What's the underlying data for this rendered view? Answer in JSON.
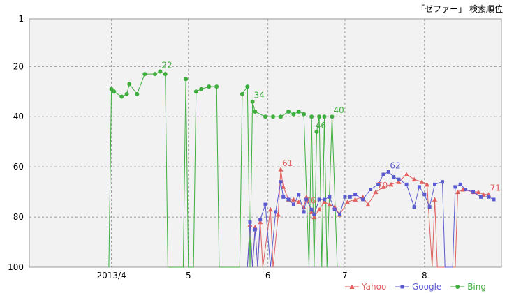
{
  "chart_data": {
    "type": "line",
    "title": "「ゼファー」 検索順位",
    "xlabel": "",
    "ylabel": "",
    "ylim": [
      1,
      100
    ],
    "y_inverted": true,
    "y_ticks": [
      1,
      20,
      40,
      60,
      80,
      100
    ],
    "x_domain": [
      "2013-02-28",
      "2013-08-31"
    ],
    "x_ticks": [
      {
        "date": "2013-04-01",
        "label": "2013/4"
      },
      {
        "date": "2013-05-01",
        "label": "5"
      },
      {
        "date": "2013-06-01",
        "label": "6"
      },
      {
        "date": "2013-07-01",
        "label": "7"
      },
      {
        "date": "2013-08-01",
        "label": "8"
      }
    ],
    "grid": true,
    "legend_position": "bottom-right",
    "series": [
      {
        "name": "Yahoo",
        "color": "#e06060",
        "marker": "triangle",
        "points": [
          [
            "2013-05-24",
            100
          ],
          [
            "2013-05-25",
            83
          ],
          [
            "2013-05-26",
            100
          ],
          [
            "2013-05-27",
            84
          ],
          [
            "2013-05-28",
            100
          ],
          [
            "2013-05-29",
            82
          ],
          [
            "2013-05-30",
            100
          ],
          [
            "2013-06-02",
            77
          ],
          [
            "2013-06-03",
            100
          ],
          [
            "2013-06-05",
            79
          ],
          [
            "2013-06-06",
            61
          ],
          [
            "2013-06-07",
            68
          ],
          [
            "2013-06-09",
            73
          ],
          [
            "2013-06-11",
            73
          ],
          [
            "2013-06-13",
            74
          ],
          [
            "2013-06-15",
            76
          ],
          [
            "2013-06-16",
            72
          ],
          [
            "2013-06-18",
            78
          ],
          [
            "2013-06-19",
            80
          ],
          [
            "2013-06-21",
            77
          ],
          [
            "2013-06-23",
            74
          ],
          [
            "2013-06-25",
            75
          ],
          [
            "2013-06-27",
            76
          ],
          [
            "2013-06-29",
            79
          ],
          [
            "2013-07-02",
            74
          ],
          [
            "2013-07-05",
            73
          ],
          [
            "2013-07-08",
            72
          ],
          [
            "2013-07-10",
            75
          ],
          [
            "2013-07-13",
            70
          ],
          [
            "2013-07-16",
            68
          ],
          [
            "2013-07-19",
            67
          ],
          [
            "2013-07-22",
            66
          ],
          [
            "2013-07-25",
            63
          ],
          [
            "2013-07-28",
            65
          ],
          [
            "2013-07-31",
            66
          ],
          [
            "2013-08-02",
            67
          ],
          [
            "2013-08-04",
            100
          ],
          [
            "2013-08-05",
            73
          ],
          [
            "2013-08-06",
            100
          ],
          [
            "2013-08-13",
            100
          ],
          [
            "2013-08-14",
            70
          ],
          [
            "2013-08-16",
            69
          ],
          [
            "2013-08-20",
            70
          ],
          [
            "2013-08-22",
            70
          ],
          [
            "2013-08-24",
            71
          ],
          [
            "2013-08-26",
            71
          ]
        ],
        "labels": [
          {
            "date": "2013-06-06",
            "value": 61,
            "text": "61"
          },
          {
            "date": "2013-06-15",
            "value": 76,
            "text": "76"
          },
          {
            "date": "2013-07-13",
            "value": 70,
            "text": "70"
          },
          {
            "date": "2013-08-26",
            "value": 71,
            "text": "71"
          }
        ]
      },
      {
        "name": "Google",
        "color": "#5b5bcf",
        "marker": "square",
        "points": [
          [
            "2013-05-24",
            100
          ],
          [
            "2013-05-25",
            82
          ],
          [
            "2013-05-26",
            100
          ],
          [
            "2013-05-27",
            85
          ],
          [
            "2013-05-28",
            100
          ],
          [
            "2013-05-29",
            81
          ],
          [
            "2013-05-31",
            75
          ],
          [
            "2013-06-02",
            100
          ],
          [
            "2013-06-04",
            78
          ],
          [
            "2013-06-06",
            66
          ],
          [
            "2013-06-07",
            72
          ],
          [
            "2013-06-09",
            73
          ],
          [
            "2013-06-11",
            75
          ],
          [
            "2013-06-13",
            71
          ],
          [
            "2013-06-15",
            78
          ],
          [
            "2013-06-16",
            73
          ],
          [
            "2013-06-18",
            77
          ],
          [
            "2013-06-19",
            79
          ],
          [
            "2013-06-21",
            73
          ],
          [
            "2013-06-23",
            73
          ],
          [
            "2013-06-25",
            72
          ],
          [
            "2013-06-27",
            77
          ],
          [
            "2013-06-29",
            79
          ],
          [
            "2013-07-01",
            72
          ],
          [
            "2013-07-03",
            72
          ],
          [
            "2013-07-05",
            71
          ],
          [
            "2013-07-08",
            73
          ],
          [
            "2013-07-11",
            69
          ],
          [
            "2013-07-14",
            67
          ],
          [
            "2013-07-16",
            63
          ],
          [
            "2013-07-18",
            62
          ],
          [
            "2013-07-20",
            64
          ],
          [
            "2013-07-22",
            65
          ],
          [
            "2013-07-25",
            67
          ],
          [
            "2013-07-28",
            76
          ],
          [
            "2013-07-30",
            68
          ],
          [
            "2013-08-01",
            71
          ],
          [
            "2013-08-03",
            76
          ],
          [
            "2013-08-05",
            67
          ],
          [
            "2013-08-08",
            66
          ],
          [
            "2013-08-09",
            100
          ],
          [
            "2013-08-12",
            100
          ],
          [
            "2013-08-13",
            68
          ],
          [
            "2013-08-15",
            67
          ],
          [
            "2013-08-17",
            69
          ],
          [
            "2013-08-20",
            70
          ],
          [
            "2013-08-23",
            72
          ],
          [
            "2013-08-26",
            72
          ],
          [
            "2013-08-28",
            73
          ]
        ],
        "labels": [
          {
            "date": "2013-07-18",
            "value": 62,
            "text": "62"
          }
        ]
      },
      {
        "name": "Bing",
        "color": "#3fae3f",
        "marker": "circle",
        "points": [
          [
            "2013-03-31",
            100
          ],
          [
            "2013-04-01",
            29
          ],
          [
            "2013-04-02",
            30
          ],
          [
            "2013-04-05",
            32
          ],
          [
            "2013-04-07",
            31
          ],
          [
            "2013-04-08",
            27
          ],
          [
            "2013-04-11",
            31
          ],
          [
            "2013-04-14",
            23
          ],
          [
            "2013-04-18",
            23
          ],
          [
            "2013-04-20",
            22
          ],
          [
            "2013-04-22",
            23
          ],
          [
            "2013-04-23",
            100
          ],
          [
            "2013-04-29",
            100
          ],
          [
            "2013-04-30",
            25
          ],
          [
            "2013-05-01",
            100
          ],
          [
            "2013-05-03",
            100
          ],
          [
            "2013-05-04",
            30
          ],
          [
            "2013-05-06",
            29
          ],
          [
            "2013-05-09",
            28
          ],
          [
            "2013-05-12",
            28
          ],
          [
            "2013-05-13",
            100
          ],
          [
            "2013-05-21",
            100
          ],
          [
            "2013-05-22",
            31
          ],
          [
            "2013-05-24",
            28
          ],
          [
            "2013-05-25",
            100
          ],
          [
            "2013-05-26",
            34
          ],
          [
            "2013-05-27",
            38
          ],
          [
            "2013-05-31",
            40
          ],
          [
            "2013-06-03",
            40
          ],
          [
            "2013-06-06",
            40
          ],
          [
            "2013-06-09",
            38
          ],
          [
            "2013-06-11",
            39
          ],
          [
            "2013-06-13",
            38
          ],
          [
            "2013-06-15",
            39
          ],
          [
            "2013-06-17",
            100
          ],
          [
            "2013-06-18",
            40
          ],
          [
            "2013-06-19",
            100
          ],
          [
            "2013-06-20",
            46
          ],
          [
            "2013-06-21",
            40
          ],
          [
            "2013-06-22",
            100
          ],
          [
            "2013-06-23",
            40
          ],
          [
            "2013-06-24",
            100
          ],
          [
            "2013-06-26",
            40
          ],
          [
            "2013-06-28",
            100
          ]
        ],
        "labels": [
          {
            "date": "2013-04-20",
            "value": 22,
            "text": "22"
          },
          {
            "date": "2013-05-26",
            "value": 34,
            "text": "34"
          },
          {
            "date": "2013-06-19",
            "value": 46,
            "text": "46"
          },
          {
            "date": "2013-06-26",
            "value": 40,
            "text": "40"
          }
        ]
      }
    ]
  }
}
